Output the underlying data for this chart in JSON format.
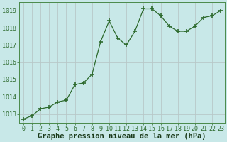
{
  "x": [
    0,
    1,
    2,
    3,
    4,
    5,
    6,
    7,
    8,
    9,
    10,
    11,
    12,
    13,
    14,
    15,
    16,
    17,
    18,
    19,
    20,
    21,
    22,
    23
  ],
  "y": [
    1012.7,
    1012.9,
    1013.3,
    1013.4,
    1013.7,
    1013.8,
    1014.7,
    1014.8,
    1015.3,
    1017.2,
    1018.4,
    1017.4,
    1017.0,
    1017.8,
    1019.1,
    1019.1,
    1018.7,
    1018.1,
    1017.8,
    1017.8,
    1018.1,
    1018.6,
    1018.7,
    1019.0
  ],
  "line_color": "#2d6a2d",
  "marker": "+",
  "marker_color": "#2d6a2d",
  "bg_color": "#c8e8e8",
  "grid_color": "#b8c8c8",
  "xlabel": "Graphe pression niveau de la mer (hPa)",
  "xlabel_color": "#1a3a1a",
  "ylim": [
    1012.5,
    1019.5
  ],
  "yticks": [
    1013,
    1014,
    1015,
    1016,
    1017,
    1018,
    1019
  ],
  "xticks": [
    0,
    1,
    2,
    3,
    4,
    5,
    6,
    7,
    8,
    9,
    10,
    11,
    12,
    13,
    14,
    15,
    16,
    17,
    18,
    19,
    20,
    21,
    22,
    23
  ],
  "tick_color": "#2d6a2d",
  "tick_fontsize": 6.0,
  "xlabel_fontsize": 7.5,
  "xlabel_fontweight": "bold",
  "spine_color": "#4a8a4a"
}
